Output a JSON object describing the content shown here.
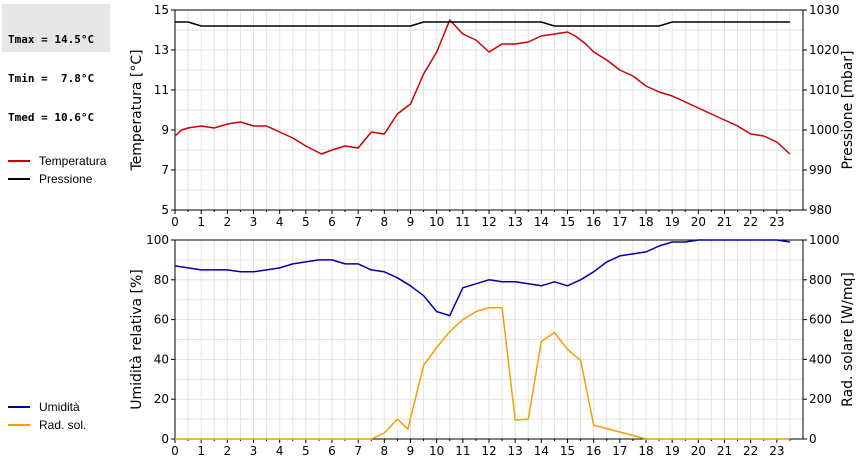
{
  "stats": {
    "tmax": "Tmax = 14.5°C",
    "tmin": "Tmin =  7.8°C",
    "tmed": "Tmed = 10.6°C"
  },
  "legend_top": [
    {
      "label": "Temperatura",
      "color": "#cc0000"
    },
    {
      "label": "Pressione",
      "color": "#000000"
    }
  ],
  "legend_bottom": [
    {
      "label": "Umidità",
      "color": "#0000aa"
    },
    {
      "label": "Rad. sol.",
      "color": "#f0a000"
    }
  ],
  "chart_data": [
    {
      "type": "line",
      "xlim": [
        0,
        24
      ],
      "x_ticks": [
        "0",
        "1",
        "2",
        "3",
        "4",
        "5",
        "6",
        "7",
        "8",
        "9",
        "10",
        "11",
        "12",
        "13",
        "14",
        "15",
        "16",
        "17",
        "18",
        "19",
        "20",
        "21",
        "22",
        "23"
      ],
      "ylabel": "Temperatura [°C]",
      "ylim": [
        5,
        15
      ],
      "y_ticks": [
        "5",
        "7",
        "9",
        "11",
        "13",
        "15"
      ],
      "y2label": "Pressione [mbar]",
      "y2lim": [
        980,
        1030
      ],
      "y2_ticks": [
        "980",
        "990",
        "1000",
        "1010",
        "1020",
        "1030"
      ],
      "grid": true,
      "series": [
        {
          "name": "Temperatura",
          "axis": "left",
          "color": "#cc0000",
          "x": [
            0,
            0.25,
            0.5,
            1,
            1.5,
            2,
            2.5,
            3,
            3.5,
            4,
            4.5,
            5,
            5.6,
            6,
            6.5,
            7,
            7.5,
            8,
            8.5,
            9,
            9.5,
            10,
            10.5,
            11,
            11.5,
            12,
            12.5,
            13,
            13.5,
            14,
            14.5,
            15,
            15.3,
            15.7,
            16,
            16.5,
            17,
            17.5,
            18,
            18.5,
            19,
            19.5,
            20,
            20.5,
            21,
            21.5,
            22,
            22.5,
            23,
            23.5
          ],
          "y": [
            8.7,
            9.0,
            9.1,
            9.2,
            9.1,
            9.3,
            9.4,
            9.2,
            9.2,
            8.9,
            8.6,
            8.2,
            7.8,
            8.0,
            8.2,
            8.1,
            8.9,
            8.8,
            9.8,
            10.3,
            11.8,
            12.9,
            14.5,
            13.8,
            13.5,
            12.9,
            13.3,
            13.3,
            13.4,
            13.7,
            13.8,
            13.9,
            13.7,
            13.3,
            12.9,
            12.5,
            12.0,
            11.7,
            11.2,
            10.9,
            10.7,
            10.4,
            10.1,
            9.8,
            9.5,
            9.2,
            8.8,
            8.7,
            8.4,
            7.8
          ]
        },
        {
          "name": "Pressione",
          "axis": "right",
          "color": "#000000",
          "x": [
            0,
            0.5,
            1,
            1.5,
            2,
            2.5,
            3,
            3.5,
            4,
            4.5,
            5,
            5.5,
            6,
            6.5,
            7,
            7.5,
            8,
            8.5,
            9,
            9.5,
            10,
            10.5,
            11,
            11.5,
            12,
            12.5,
            13,
            13.5,
            14,
            14.5,
            15,
            15.5,
            16,
            16.5,
            17,
            17.5,
            18,
            18.5,
            19,
            19.5,
            20,
            20.5,
            21,
            21.5,
            22,
            22.5,
            23,
            23.5
          ],
          "y": [
            1027,
            1027,
            1026,
            1026,
            1026,
            1026,
            1026,
            1026,
            1026,
            1026,
            1026,
            1026,
            1026,
            1026,
            1026,
            1026,
            1026,
            1026,
            1026,
            1027,
            1027,
            1027,
            1027,
            1027,
            1027,
            1027,
            1027,
            1027,
            1027,
            1026,
            1026,
            1026,
            1026,
            1026,
            1026,
            1026,
            1026,
            1026,
            1027,
            1027,
            1027,
            1027,
            1027,
            1027,
            1027,
            1027,
            1027,
            1027
          ]
        }
      ]
    },
    {
      "type": "line",
      "xlim": [
        0,
        24
      ],
      "x_ticks": [
        "0",
        "1",
        "2",
        "3",
        "4",
        "5",
        "6",
        "7",
        "8",
        "9",
        "10",
        "11",
        "12",
        "13",
        "14",
        "15",
        "16",
        "17",
        "18",
        "19",
        "20",
        "21",
        "22",
        "23"
      ],
      "ylabel": "Umidità relativa [%]",
      "ylim": [
        0,
        100
      ],
      "y_ticks": [
        "0",
        "20",
        "40",
        "60",
        "80",
        "100"
      ],
      "y2label": "Rad. solare [W/mq]",
      "y2lim": [
        0,
        1000
      ],
      "y2_ticks": [
        "0",
        "200",
        "400",
        "600",
        "800",
        "1000"
      ],
      "grid": true,
      "series": [
        {
          "name": "Umidità",
          "axis": "left",
          "color": "#0000aa",
          "x": [
            0,
            0.5,
            1,
            1.5,
            2,
            2.5,
            3,
            3.5,
            4,
            4.5,
            5,
            5.5,
            6,
            6.5,
            7,
            7.5,
            8,
            8.5,
            9,
            9.5,
            10,
            10.5,
            11,
            11.5,
            12,
            12.5,
            13,
            13.5,
            14,
            14.5,
            15,
            15.5,
            16,
            16.5,
            17,
            17.5,
            18,
            18.5,
            19,
            19.5,
            20,
            20.5,
            21,
            21.5,
            22,
            22.5,
            23,
            23.5
          ],
          "y": [
            87,
            86,
            85,
            85,
            85,
            84,
            84,
            85,
            86,
            88,
            89,
            90,
            90,
            88,
            88,
            85,
            84,
            81,
            77,
            72,
            64,
            62,
            76,
            78,
            80,
            79,
            79,
            78,
            77,
            79,
            77,
            80,
            84,
            89,
            92,
            93,
            94,
            97,
            99,
            99,
            100,
            100,
            100,
            100,
            100,
            100,
            100,
            99
          ]
        },
        {
          "name": "Rad. sol.",
          "axis": "right",
          "color": "#f0a000",
          "x": [
            0,
            1,
            2,
            3,
            4,
            5,
            6,
            7,
            7.5,
            8,
            8.5,
            8.9,
            9.5,
            10,
            10.5,
            11,
            11.5,
            12,
            12.5,
            13,
            13.5,
            14,
            14.5,
            15,
            15.5,
            16,
            17,
            18,
            19,
            20,
            21,
            22,
            23,
            23.5
          ],
          "y": [
            0,
            0,
            0,
            0,
            0,
            0,
            0,
            0,
            0,
            30,
            100,
            50,
            370,
            460,
            540,
            600,
            640,
            660,
            660,
            95,
            100,
            490,
            535,
            450,
            395,
            70,
            35,
            0,
            0,
            0,
            0,
            0,
            0,
            0
          ]
        }
      ]
    }
  ]
}
